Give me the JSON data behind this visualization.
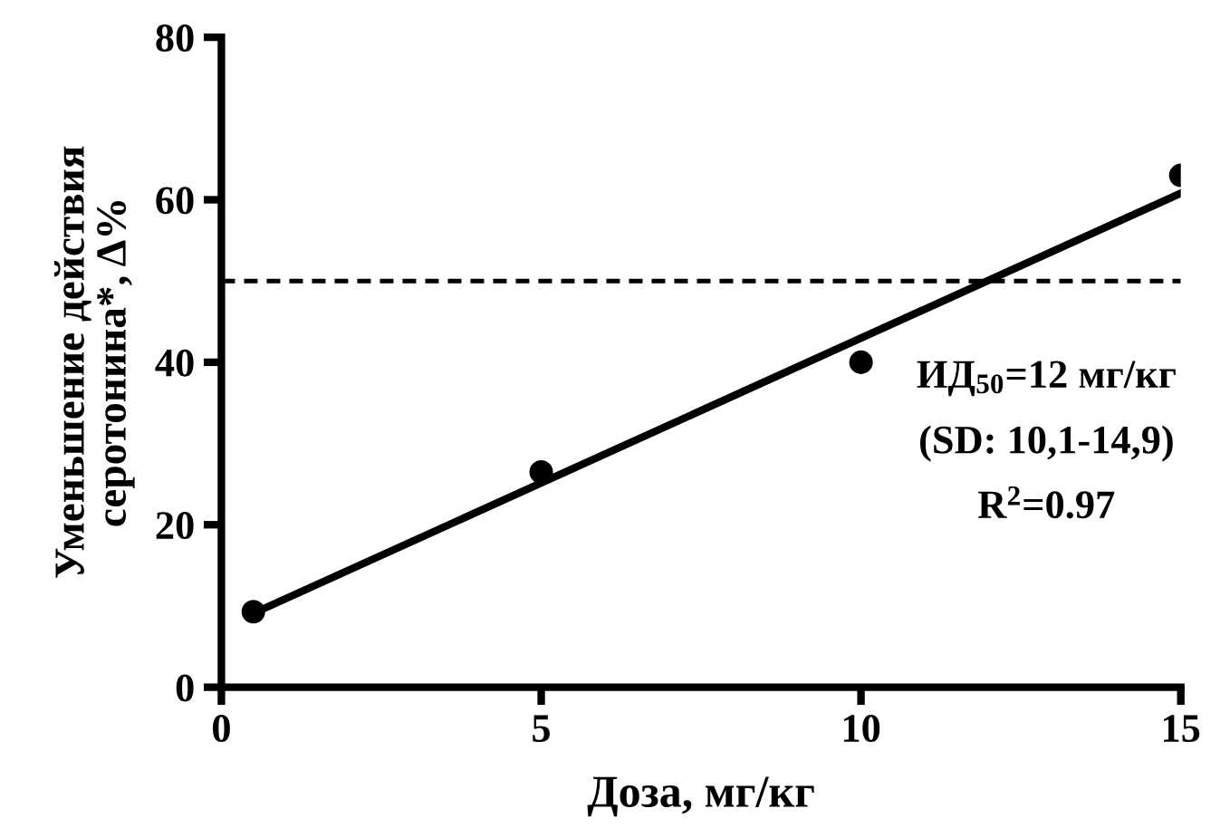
{
  "chart_data": {
    "type": "scatter",
    "xlabel": "Доза, мг/кг",
    "ylabel": "Уменьшение действия\nсеротонина*, Δ%",
    "x": [
      0.5,
      5,
      10,
      15
    ],
    "series": [
      {
        "color": "#000000",
        "marker": "circle",
        "values": [
          9.3,
          26.5,
          40,
          63
        ]
      },
      {
        "type": "line",
        "color": "#000000",
        "marker": "none",
        "line_style": "solid",
        "x": [
          0.5,
          15
        ],
        "values": [
          9.1,
          60.8
        ]
      }
    ],
    "xlim": [
      0,
      15
    ],
    "xticks": [
      0,
      5,
      10,
      15
    ],
    "ylim": [
      0,
      80
    ],
    "yticks": [
      0,
      20,
      40,
      60,
      80
    ],
    "ref_lines": [
      {
        "axis": "y",
        "value": 50,
        "line_style": "dashed",
        "color": "#000000"
      }
    ],
    "annotations": [
      "ИД$_{50}$=12 мг/кг",
      "(SD: 10,1-14,9)",
      "R$^{2}$=0.97"
    ],
    "grid": false,
    "legend": false
  }
}
